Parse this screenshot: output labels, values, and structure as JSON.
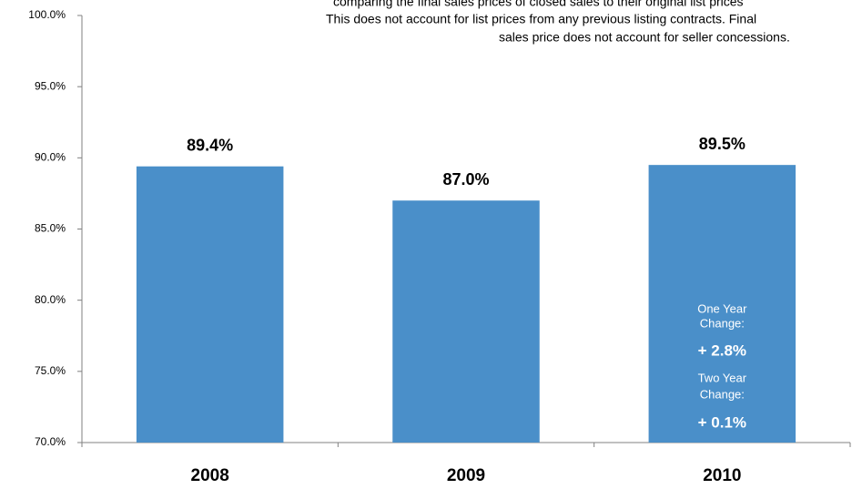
{
  "chart_data": {
    "type": "bar",
    "categories": [
      "2008",
      "2009",
      "2010"
    ],
    "values": [
      89.4,
      87.0,
      89.5
    ],
    "value_labels": [
      "89.4%",
      "87.0%",
      "89.5%"
    ],
    "color": "#4a8fc9",
    "ylim": [
      70,
      100
    ],
    "yticks": [
      {
        "value": 70,
        "label": "70.0%"
      },
      {
        "value": 75,
        "label": "75.0%"
      },
      {
        "value": 80,
        "label": "80.0%"
      },
      {
        "value": 85,
        "label": "85.0%"
      },
      {
        "value": 90,
        "label": "90.0%"
      },
      {
        "value": 95,
        "label": "95.0%"
      },
      {
        "value": 100,
        "label": "100.0%"
      }
    ],
    "grid": false,
    "notes": [
      "comparing the final sales prices of closed sales to their original list prices",
      "This does not account for list prices from any previous listing contracts. Final",
      "sales price does not account for seller concessions."
    ],
    "bar_annotations": [
      "One Year",
      "Change:",
      "+ 2.8%",
      "Two Year",
      "Change:",
      "+ 0.1%"
    ]
  }
}
